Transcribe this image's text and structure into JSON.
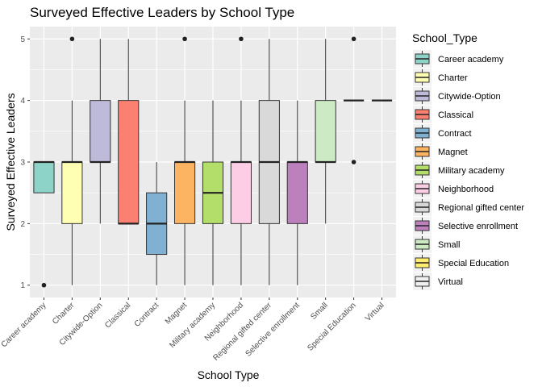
{
  "chart_data": {
    "type": "boxplot",
    "title": "Surveyed Effective Leaders by School Type",
    "xlabel": "School Type",
    "ylabel": "Surveyed Effective Leaders",
    "ylim": [
      0.8,
      5.2
    ],
    "yticks": [
      1,
      2,
      3,
      4,
      5
    ],
    "grid": true,
    "legend": {
      "title": "School_Type",
      "position": "right"
    },
    "categories": [
      "Career academy",
      "Charter",
      "Citywide-Option",
      "Classical",
      "Contract",
      "Magnet",
      "Military academy",
      "Neighborhood",
      "Regional gifted center",
      "Selective enrollment",
      "Small",
      "Special Education",
      "Virtual"
    ],
    "boxes": [
      {
        "name": "Career academy",
        "color": "#8DD3C7",
        "whisker_low": 2.5,
        "q1": 2.5,
        "median": 3.0,
        "q3": 3.0,
        "whisker_high": 3.0,
        "outliers": [
          1
        ]
      },
      {
        "name": "Charter",
        "color": "#FFFFB3",
        "whisker_low": 1,
        "q1": 2,
        "median": 3,
        "q3": 3,
        "whisker_high": 4,
        "outliers": [
          5
        ]
      },
      {
        "name": "Citywide-Option",
        "color": "#BEBADA",
        "whisker_low": 2,
        "q1": 3,
        "median": 3,
        "q3": 4,
        "whisker_high": 5,
        "outliers": []
      },
      {
        "name": "Classical",
        "color": "#FB8072",
        "whisker_low": 2,
        "q1": 2,
        "median": 2,
        "q3": 4,
        "whisker_high": 5,
        "outliers": []
      },
      {
        "name": "Contract",
        "color": "#80B1D3",
        "whisker_low": 1,
        "q1": 1.5,
        "median": 2,
        "q3": 2.5,
        "whisker_high": 3,
        "outliers": []
      },
      {
        "name": "Magnet",
        "color": "#FDB462",
        "whisker_low": 1,
        "q1": 2,
        "median": 3,
        "q3": 3,
        "whisker_high": 4,
        "outliers": [
          5
        ]
      },
      {
        "name": "Military academy",
        "color": "#B3DE69",
        "whisker_low": 1,
        "q1": 2,
        "median": 2.5,
        "q3": 3,
        "whisker_high": 4,
        "outliers": []
      },
      {
        "name": "Neighborhood",
        "color": "#FCCDE5",
        "whisker_low": 1,
        "q1": 2,
        "median": 3,
        "q3": 3,
        "whisker_high": 4,
        "outliers": [
          5
        ]
      },
      {
        "name": "Regional gifted center",
        "color": "#D9D9D9",
        "whisker_low": 1,
        "q1": 2,
        "median": 3,
        "q3": 4,
        "whisker_high": 5,
        "outliers": []
      },
      {
        "name": "Selective enrollment",
        "color": "#BC80BD",
        "whisker_low": 1,
        "q1": 2,
        "median": 3,
        "q3": 3,
        "whisker_high": 4,
        "outliers": []
      },
      {
        "name": "Small",
        "color": "#CCEBC5",
        "whisker_low": 2,
        "q1": 3,
        "median": 3,
        "q3": 4,
        "whisker_high": 5,
        "outliers": []
      },
      {
        "name": "Special Education",
        "color": "#FFED6F",
        "whisker_low": 4,
        "q1": 4,
        "median": 4,
        "q3": 4,
        "whisker_high": 4,
        "outliers": [
          5,
          3
        ]
      },
      {
        "name": "Virtual",
        "color": "#F0F0F0",
        "whisker_low": 4,
        "q1": 4,
        "median": 4,
        "q3": 4,
        "whisker_high": 4,
        "outliers": []
      }
    ]
  }
}
